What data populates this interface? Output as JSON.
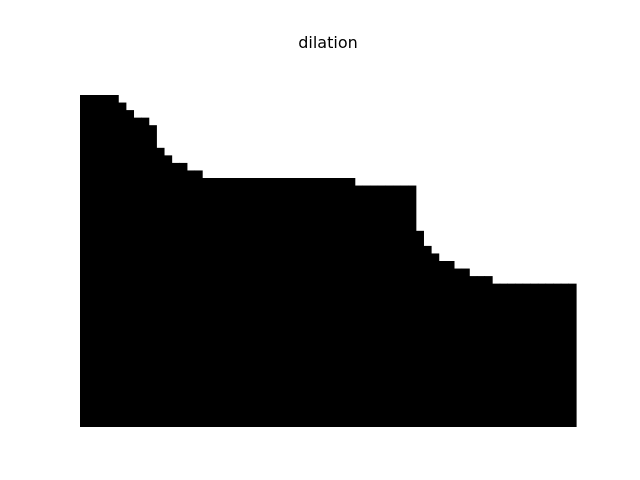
{
  "chart_data": {
    "type": "heatmap",
    "title": "dilation",
    "axes_visible": false,
    "grid": false,
    "colors": {
      "filled": "#000000",
      "empty": "#ffffff"
    },
    "image_shape": [
      44,
      65
    ],
    "column_top_profile": [
      0,
      0,
      0,
      0,
      0,
      1,
      2,
      3,
      3,
      4,
      7,
      8,
      9,
      9,
      10,
      10,
      11,
      11,
      11,
      11,
      11,
      11,
      11,
      11,
      11,
      11,
      11,
      11,
      11,
      11,
      11,
      11,
      11,
      11,
      11,
      11,
      12,
      12,
      12,
      12,
      12,
      12,
      12,
      12,
      18,
      20,
      21,
      22,
      22,
      23,
      23,
      24,
      24,
      24,
      25,
      25,
      25,
      25,
      25,
      25,
      25,
      25,
      25,
      25,
      25
    ]
  }
}
